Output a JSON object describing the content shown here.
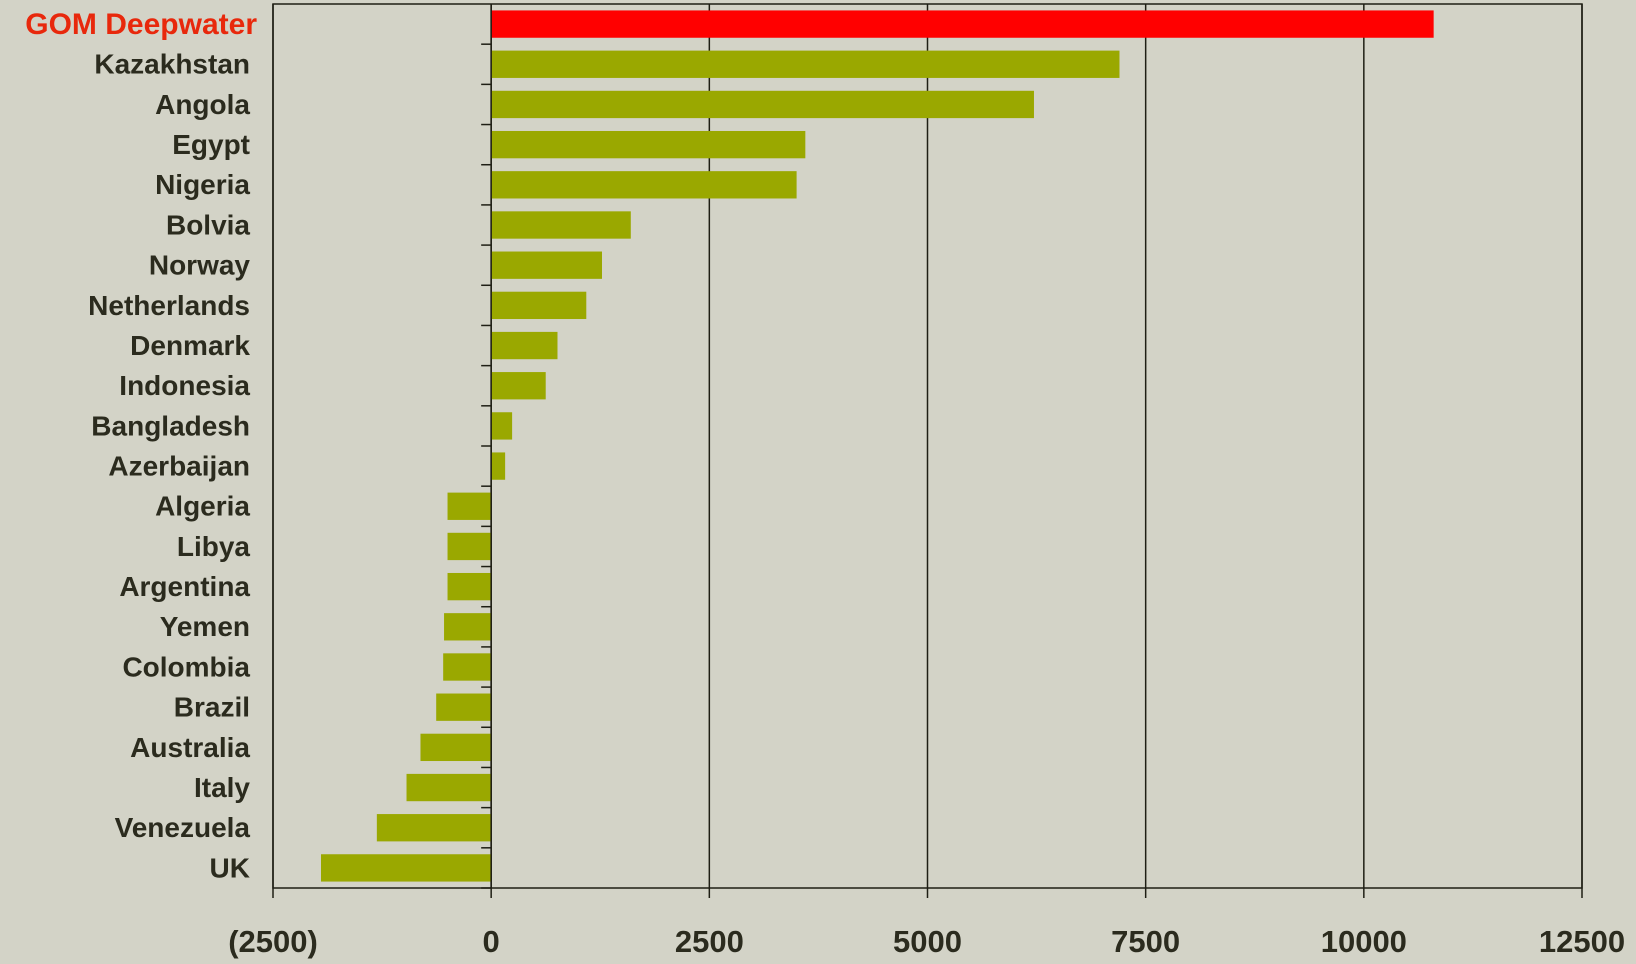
{
  "chart_data": {
    "type": "bar",
    "orientation": "horizontal",
    "categories": [
      "GOM Deepwater",
      "Kazakhstan",
      "Angola",
      "Egypt",
      "Nigeria",
      "Bolvia",
      "Norway",
      "Netherlands",
      "Denmark",
      "Indonesia",
      "Bangladesh",
      "Azerbaijan",
      "Algeria",
      "Libya",
      "Argentina",
      "Yemen",
      "Colombia",
      "Brazil",
      "Australia",
      "Italy",
      "Venezuela",
      "UK"
    ],
    "values": [
      10800,
      7200,
      6220,
      3600,
      3500,
      1600,
      1270,
      1090,
      760,
      625,
      240,
      160,
      -500,
      -500,
      -500,
      -540,
      -550,
      -630,
      -810,
      -970,
      -1310,
      -1950
    ],
    "color": "#9aa800",
    "highlight_index": 0,
    "highlight_color": "#ff0000",
    "highlight_label_color": "#e8280c",
    "xlim": [
      -2500,
      12500
    ],
    "xticks": [
      {
        "value": -2500,
        "label": "(2500)"
      },
      0,
      2500,
      5000,
      7500,
      10000,
      12500
    ],
    "grid": true
  }
}
